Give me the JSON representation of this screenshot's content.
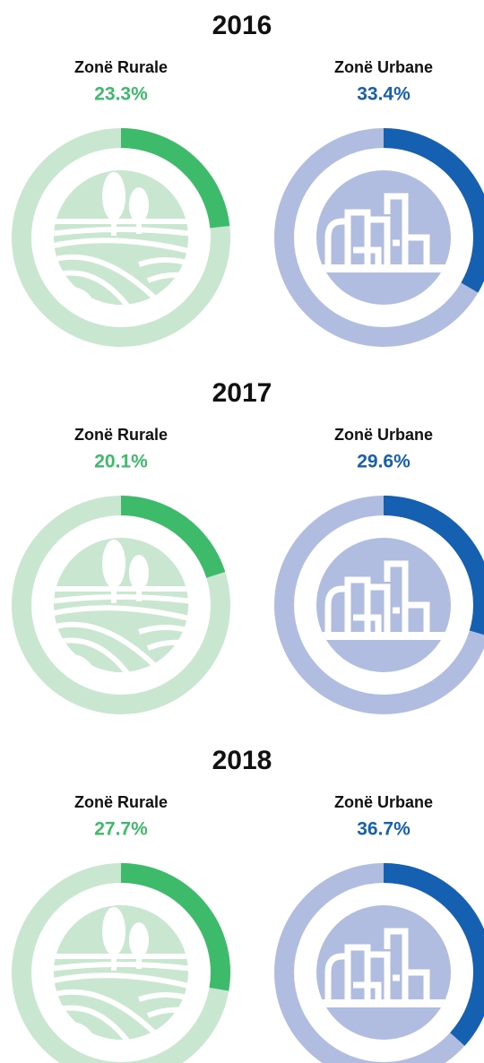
{
  "chart_data": [
    {
      "type": "donut",
      "title": "2016",
      "categories": [
        "Zonë Rurale",
        "Zonë Urbane"
      ],
      "values": [
        23.3,
        33.4
      ],
      "value_labels": [
        "23.3%",
        "33.4%"
      ],
      "colors": [
        "#3dba6a",
        "#1560b0"
      ],
      "track_colors": [
        "#c8e6d0",
        "#b0bde0"
      ]
    },
    {
      "type": "donut",
      "title": "2017",
      "categories": [
        "Zonë Rurale",
        "Zonë Urbane"
      ],
      "values": [
        20.1,
        29.6
      ],
      "value_labels": [
        "20.1%",
        "29.6%"
      ],
      "colors": [
        "#3dba6a",
        "#1560b0"
      ],
      "track_colors": [
        "#c8e6d0",
        "#b0bde0"
      ]
    },
    {
      "type": "donut",
      "title": "2018",
      "categories": [
        "Zonë Rurale",
        "Zonë Urbane"
      ],
      "values": [
        27.7,
        36.7
      ],
      "value_labels": [
        "27.7%",
        "36.7%"
      ],
      "colors": [
        "#3dba6a",
        "#1560b0"
      ],
      "track_colors": [
        "#c8e6d0",
        "#b0bde0"
      ]
    }
  ]
}
